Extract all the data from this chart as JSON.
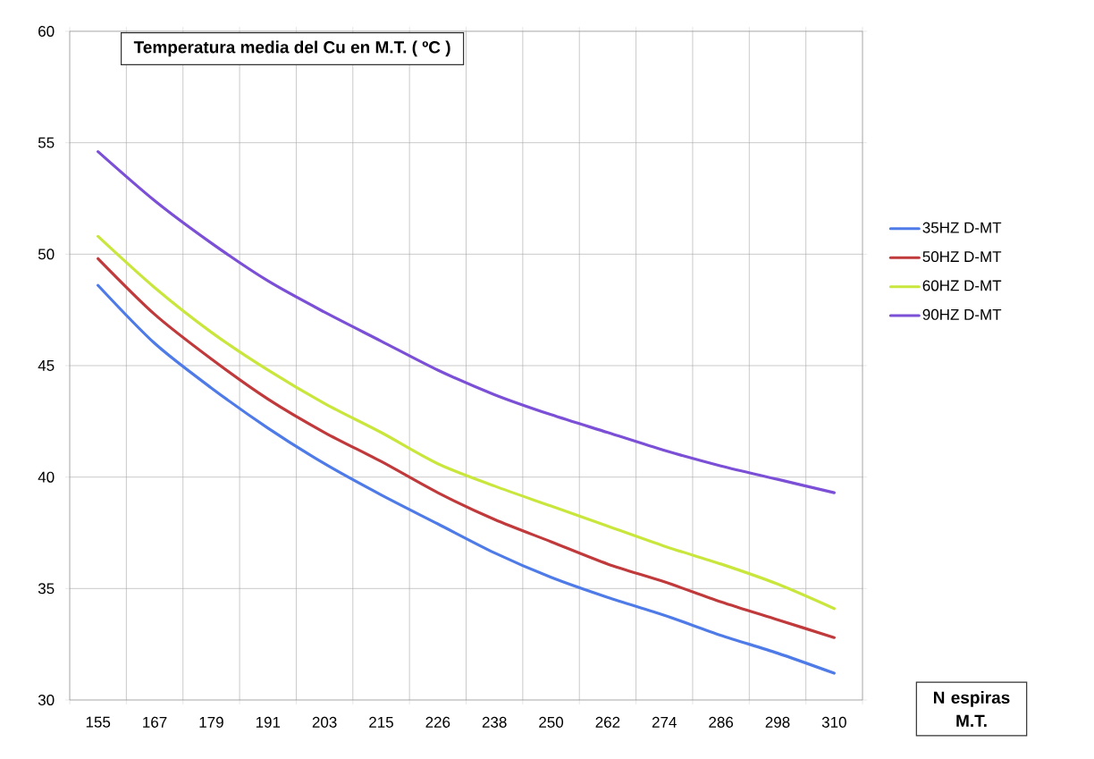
{
  "chart_data": {
    "type": "line",
    "title": "Temperatura media del Cu en M.T. ( ºC )",
    "xlabel": "N espiras M.T.",
    "categories": [
      "155",
      "167",
      "179",
      "191",
      "203",
      "215",
      "226",
      "238",
      "250",
      "262",
      "274",
      "286",
      "298",
      "310"
    ],
    "series": [
      {
        "name": "35HZ D-MT",
        "color": "#4f7be8",
        "values": [
          48.6,
          46.0,
          44.0,
          42.2,
          40.6,
          39.2,
          37.9,
          36.6,
          35.5,
          34.6,
          33.8,
          32.9,
          32.1,
          31.2
        ]
      },
      {
        "name": "50HZ D-MT",
        "color": "#c0393b",
        "values": [
          49.8,
          47.3,
          45.3,
          43.5,
          42.0,
          40.7,
          39.3,
          38.1,
          37.1,
          36.1,
          35.3,
          34.4,
          33.6,
          32.8
        ]
      },
      {
        "name": "60HZ D-MT",
        "color": "#c8e63c",
        "values": [
          50.8,
          48.5,
          46.5,
          44.8,
          43.3,
          42.0,
          40.6,
          39.6,
          38.7,
          37.8,
          36.9,
          36.1,
          35.2,
          34.1
        ]
      },
      {
        "name": "90HZ D-MT",
        "color": "#7b4fd6",
        "values": [
          54.6,
          52.4,
          50.5,
          48.8,
          47.4,
          46.1,
          44.8,
          43.7,
          42.8,
          42.0,
          41.2,
          40.5,
          39.9,
          39.3
        ]
      }
    ],
    "ylim": [
      30,
      60
    ],
    "yticks": [
      30,
      35,
      40,
      45,
      50,
      55,
      60
    ],
    "grid": true,
    "legend": "right"
  }
}
